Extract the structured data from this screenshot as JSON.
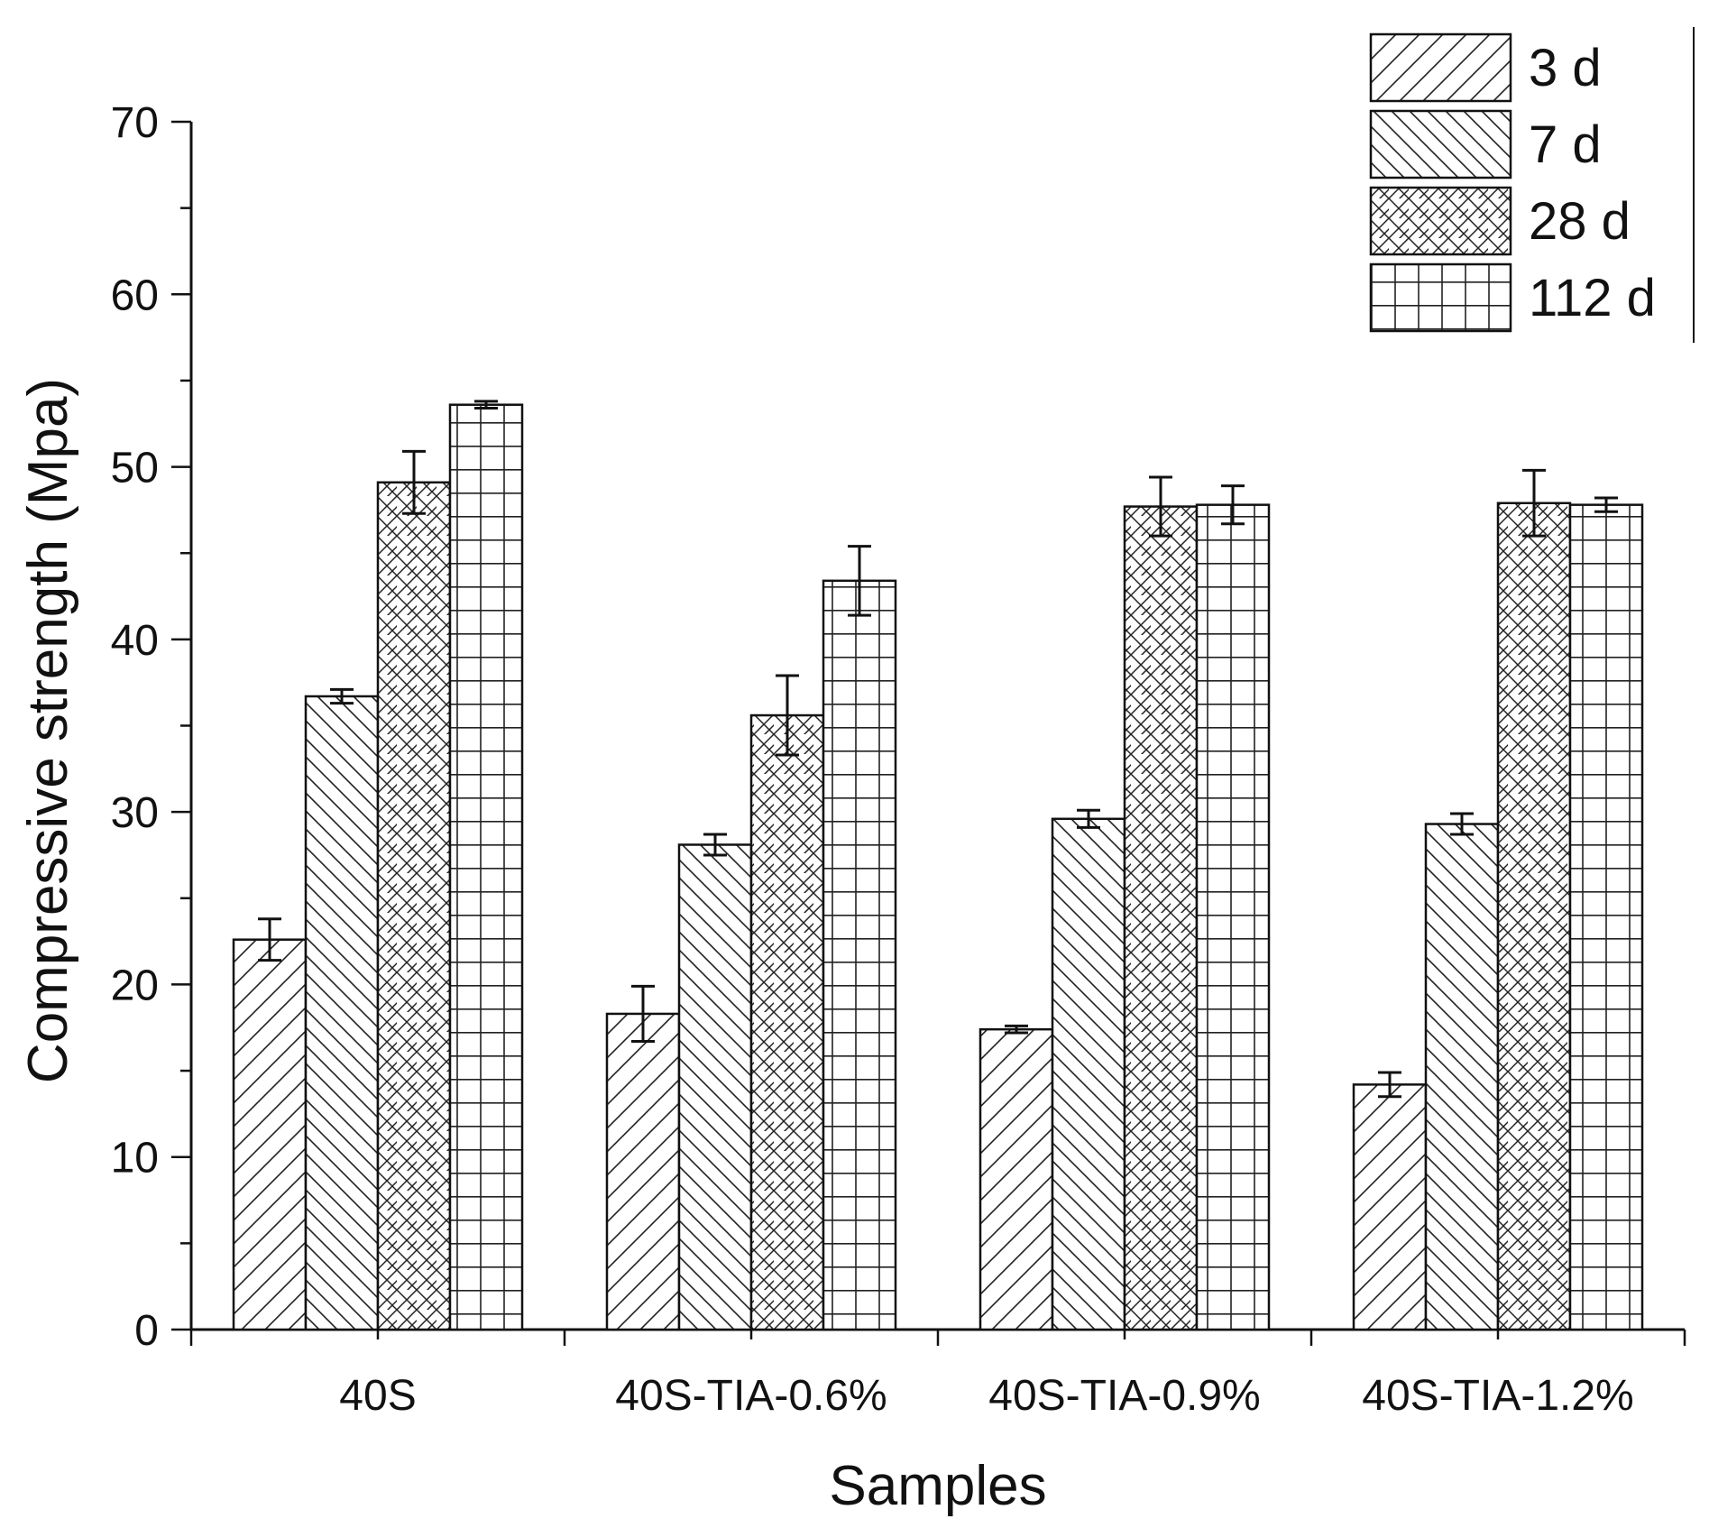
{
  "chart_data": {
    "type": "bar",
    "title": "",
    "xlabel": "Samples",
    "ylabel": "Compressive strength (Mpa)",
    "ylim": [
      0,
      70
    ],
    "yticks": [
      0,
      10,
      20,
      30,
      40,
      50,
      60,
      70
    ],
    "y_minor_step": 5,
    "categories": [
      "40S",
      "40S-TIA-0.6%",
      "40S-TIA-0.9%",
      "40S-TIA-1.2%"
    ],
    "series": [
      {
        "name": "3 d",
        "pattern": "diag-fwd",
        "values": [
          22.6,
          18.3,
          17.4,
          14.2
        ],
        "errors": [
          1.2,
          1.6,
          0.2,
          0.7
        ]
      },
      {
        "name": "7 d",
        "pattern": "diag-back",
        "values": [
          36.7,
          28.1,
          29.6,
          29.3
        ],
        "errors": [
          0.4,
          0.6,
          0.5,
          0.6
        ]
      },
      {
        "name": "28 d",
        "pattern": "crosshatch",
        "values": [
          49.1,
          35.6,
          47.7,
          47.9
        ],
        "errors": [
          1.8,
          2.3,
          1.7,
          1.9
        ]
      },
      {
        "name": "112 d",
        "pattern": "grid",
        "values": [
          53.6,
          43.4,
          47.8,
          47.8
        ],
        "errors": [
          0.2,
          2.0,
          1.1,
          0.4
        ]
      }
    ],
    "legend_position": "top-right",
    "grid": false,
    "colors": {
      "stroke": "#111111",
      "background": "#ffffff"
    }
  }
}
